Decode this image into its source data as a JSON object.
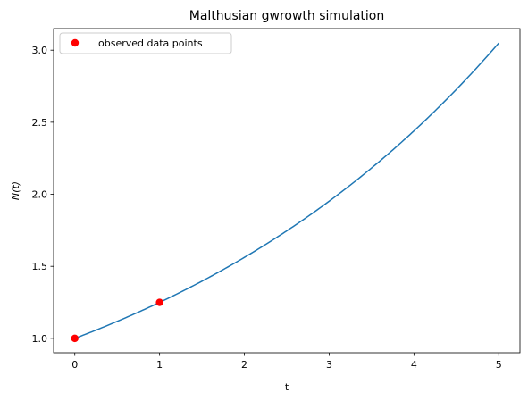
{
  "chart_data": {
    "type": "line",
    "title": "Malthusian gwrowth simulation",
    "xlabel": "t",
    "ylabel": "N(t)",
    "xlim": [
      -0.25,
      5.25
    ],
    "ylim": [
      0.9,
      3.15
    ],
    "xticks": [
      0,
      1,
      2,
      3,
      4,
      5
    ],
    "xtick_labels": [
      "0",
      "1",
      "2",
      "3",
      "4",
      "5"
    ],
    "yticks": [
      1.0,
      1.5,
      2.0,
      2.5,
      3.0
    ],
    "ytick_labels": [
      "1.0",
      "1.5",
      "2.0",
      "2.5",
      "3.0"
    ],
    "grid": false,
    "legend_position": "top-left",
    "series": [
      {
        "kind": "line",
        "color": "#1f77b4",
        "growth_rate": 0.223,
        "x": [
          0,
          0.5,
          1,
          1.5,
          2,
          2.5,
          3,
          3.5,
          4,
          4.5,
          5
        ],
        "y": [
          1.0,
          1.118,
          1.25,
          1.397,
          1.562,
          1.746,
          1.952,
          2.182,
          2.439,
          2.727,
          3.049
        ]
      },
      {
        "kind": "scatter",
        "name": "observed data points",
        "color": "#ff0000",
        "x": [
          0,
          1
        ],
        "y": [
          1.0,
          1.25
        ]
      }
    ]
  }
}
